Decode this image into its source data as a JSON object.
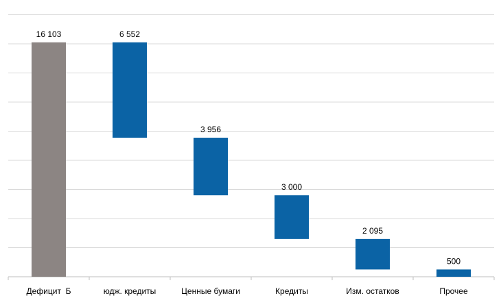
{
  "chart_data": {
    "type": "waterfall",
    "title": "",
    "xlabel": "",
    "ylabel": "",
    "ylim": [
      0,
      18400
    ],
    "grid": true,
    "legend": "none",
    "categories": [
      "Дефицит  Б",
      "юдж. кредиты",
      "Ценные бумаги",
      "Кредиты",
      "Изм. остатков",
      "Прочее"
    ],
    "values": [
      16103,
      6552,
      3956,
      3000,
      2095,
      500
    ],
    "value_labels": [
      "16 103",
      "6 552",
      "3 956",
      "3 000",
      "2 095",
      "500"
    ],
    "bar_kinds": [
      "total",
      "step",
      "step",
      "step",
      "step",
      "step"
    ],
    "colors": {
      "total": "#8c8583",
      "step": "#0b63a5",
      "grid": "#d9d9d9",
      "axis": "#bfbfbf"
    }
  }
}
